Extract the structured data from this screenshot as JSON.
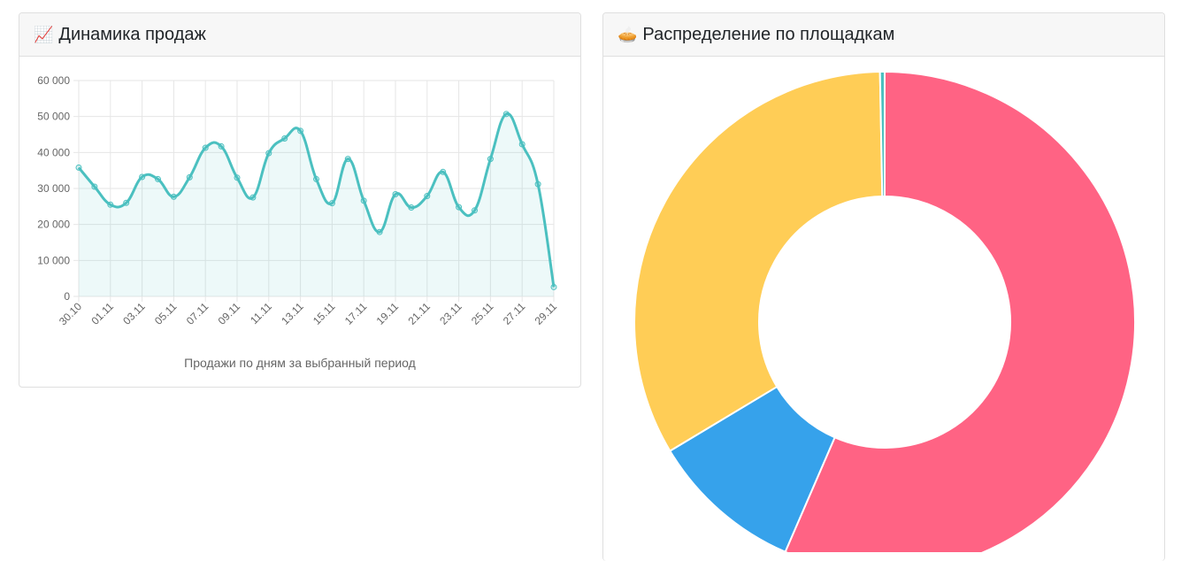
{
  "sales_card": {
    "icon": "chart-increasing-icon",
    "icon_glyph": "📈",
    "title": "Динамика продаж",
    "caption": "Продажи по дням за выбранный период"
  },
  "platforms_card": {
    "icon": "pie-icon",
    "icon_glyph": "🥧",
    "title": "Распределение по площадкам"
  },
  "chart_data": [
    {
      "type": "line",
      "title": "",
      "xlabel": "Продажи по дням за выбранный период",
      "ylabel": "",
      "ylim": [
        0,
        60000
      ],
      "yticks": [
        0,
        10000,
        20000,
        30000,
        40000,
        50000,
        60000
      ],
      "ytick_labels": [
        "0",
        "10 000",
        "20 000",
        "30 000",
        "40 000",
        "50 000",
        "60 000"
      ],
      "x": [
        "30.10",
        "31.10",
        "01.11",
        "02.11",
        "03.11",
        "04.11",
        "05.11",
        "06.11",
        "07.11",
        "08.11",
        "09.11",
        "10.11",
        "11.11",
        "12.11",
        "13.11",
        "14.11",
        "15.11",
        "16.11",
        "17.11",
        "18.11",
        "19.11",
        "20.11",
        "21.11",
        "22.11",
        "23.11",
        "24.11",
        "25.11",
        "26.11",
        "27.11",
        "28.11",
        "29.11"
      ],
      "xtick_labels": [
        "30.10",
        "01.11",
        "03.11",
        "05.11",
        "07.11",
        "09.11",
        "11.11",
        "13.11",
        "15.11",
        "17.11",
        "19.11",
        "21.11",
        "23.11",
        "25.11",
        "27.11",
        "29.11"
      ],
      "series": [
        {
          "values": [
            35800,
            30500,
            25500,
            26000,
            33200,
            32600,
            27700,
            33100,
            41300,
            41700,
            33000,
            27500,
            39800,
            43900,
            46000,
            32600,
            25900,
            38200,
            26600,
            17900,
            28400,
            24700,
            27900,
            34600,
            24800,
            23900,
            38200,
            50700,
            42300,
            31200,
            2600
          ],
          "color": "#4bc0c0",
          "fill": "rgba(75,192,192,0.1)"
        }
      ],
      "grid": true,
      "legend": "none"
    },
    {
      "type": "pie",
      "subtype": "donut",
      "categories": [
        "",
        "",
        "",
        ""
      ],
      "values": [
        56.5,
        9.9,
        33.3,
        0.3
      ],
      "colors": [
        "#ff6384",
        "#36a2eb",
        "#ffcd56",
        "#4bc0c0"
      ],
      "legend": "none"
    }
  ]
}
